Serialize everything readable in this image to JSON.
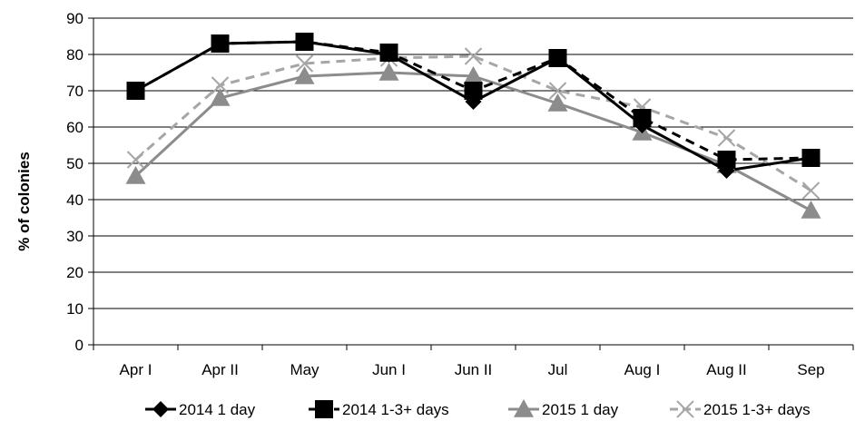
{
  "chart_data": {
    "type": "line",
    "title": "",
    "xlabel": "",
    "ylabel": "% of colonies",
    "ylim": [
      0,
      90
    ],
    "yticks": [
      0,
      10,
      20,
      30,
      40,
      50,
      60,
      70,
      80,
      90
    ],
    "categories": [
      "Apr I",
      "Apr II",
      "May",
      "Jun I",
      "Jun II",
      "Jul",
      "Aug I",
      "Aug II",
      "Sep"
    ],
    "grid": "horizontal",
    "legend_position": "bottom",
    "series": [
      {
        "name": "2014 1 day",
        "color": "#000000",
        "line_style": "solid",
        "marker": "diamond",
        "values": [
          70,
          83,
          83.5,
          80,
          67,
          79,
          60.5,
          48,
          51.5
        ]
      },
      {
        "name": "2014 1-3+ days",
        "color": "#000000",
        "line_style": "dashed",
        "marker": "square",
        "values": [
          70,
          83,
          83.5,
          80.5,
          70,
          79,
          62.5,
          51,
          51.5
        ]
      },
      {
        "name": "2015 1 day",
        "color": "#8c8c8c",
        "line_style": "solid",
        "marker": "triangle",
        "values": [
          46.5,
          68,
          74,
          75,
          74,
          66.5,
          58.5,
          49.5,
          37
        ]
      },
      {
        "name": "2015 1-3+ days",
        "color": "#a6a6a6",
        "line_style": "dashed",
        "marker": "x",
        "values": [
          51,
          71.5,
          77.5,
          79,
          79.5,
          70,
          65.5,
          57,
          42.5
        ]
      }
    ]
  }
}
